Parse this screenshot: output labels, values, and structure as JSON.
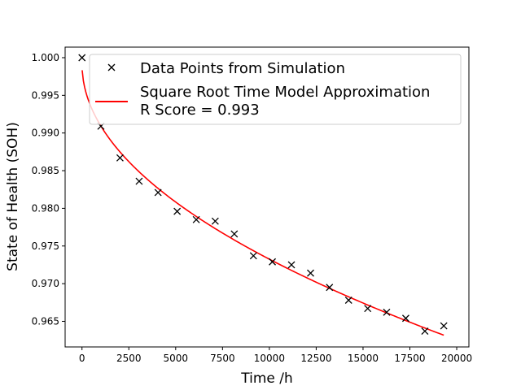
{
  "chart_data": {
    "type": "scatter",
    "title": "",
    "xlabel": "Time /h",
    "ylabel": "State of Health (SOH)",
    "xlim": [
      -900,
      20650
    ],
    "ylim": [
      0.9616,
      1.0014
    ],
    "xticks": [
      0,
      2500,
      5000,
      7500,
      10000,
      12500,
      15000,
      17500,
      20000
    ],
    "yticks": [
      0.965,
      0.97,
      0.975,
      0.98,
      0.985,
      0.99,
      0.995,
      1.0
    ],
    "grid": false,
    "legend_position": "top-right",
    "series": [
      {
        "name": "Data Points from Simulation",
        "kind": "scatter",
        "marker": "x",
        "color": "#000000",
        "x": [
          0,
          1010,
          2030,
          3050,
          4060,
          5080,
          6100,
          7110,
          8130,
          9150,
          10160,
          11180,
          12200,
          13210,
          14230,
          15250,
          16260,
          17280,
          18300,
          19310
        ],
        "y": [
          1.0,
          0.9909,
          0.9867,
          0.9836,
          0.9821,
          0.9796,
          0.9785,
          0.9783,
          0.9766,
          0.9737,
          0.9729,
          0.9725,
          0.9714,
          0.9695,
          0.9678,
          0.9667,
          0.9662,
          0.9654,
          0.9637,
          0.9644
        ]
      },
      {
        "name": "Square Root Time Model Approximation",
        "name_line2": "R Score = 0.993",
        "kind": "line",
        "color": "#ff0000",
        "model": {
          "form": "a - b*sqrt(t)",
          "a": 0.99915,
          "b": 0.000259,
          "t_min": 10,
          "t_max": 19310
        }
      }
    ]
  }
}
